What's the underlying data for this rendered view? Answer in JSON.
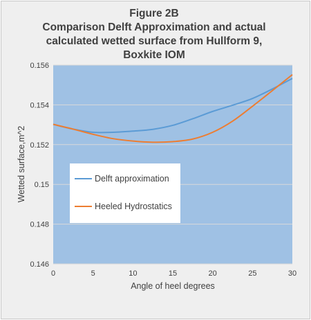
{
  "chart_data": {
    "type": "line",
    "title_lines": [
      "Figure 2B",
      "Comparison Delft Approximation and actual",
      "calculated wetted surface from Hullform 9,",
      "Boxkite IOM"
    ],
    "xlabel": "Angle of heel degrees",
    "ylabel": "Wetted surface,m^2",
    "xlim": [
      0,
      30
    ],
    "ylim": [
      0.146,
      0.156
    ],
    "x_ticks": [
      "0",
      "5",
      "10",
      "15",
      "20",
      "25",
      "30"
    ],
    "y_ticks": [
      "0.146",
      "0.148",
      "0.15",
      "0.152",
      "0.154",
      "0.156"
    ],
    "grid": true,
    "legend_position": "inside-left",
    "series": [
      {
        "name": "Delft approximation",
        "color": "#5b9bd5",
        "x": [
          0,
          2.5,
          5,
          7.5,
          10,
          12.5,
          15,
          17.5,
          20,
          22.5,
          25,
          27.5,
          30
        ],
        "y": [
          0.15302,
          0.15278,
          0.15262,
          0.15262,
          0.15268,
          0.15277,
          0.15297,
          0.1533,
          0.15367,
          0.15398,
          0.15432,
          0.1548,
          0.15533
        ]
      },
      {
        "name": "Heeled Hydrostatics",
        "color": "#ed7d31",
        "x": [
          0,
          2.5,
          5,
          7.5,
          10,
          12.5,
          15,
          17.5,
          20,
          22.5,
          25,
          27.5,
          30
        ],
        "y": [
          0.15302,
          0.15278,
          0.15252,
          0.1523,
          0.15218,
          0.15212,
          0.15215,
          0.15228,
          0.15262,
          0.15318,
          0.15393,
          0.15472,
          0.15552
        ]
      }
    ]
  }
}
